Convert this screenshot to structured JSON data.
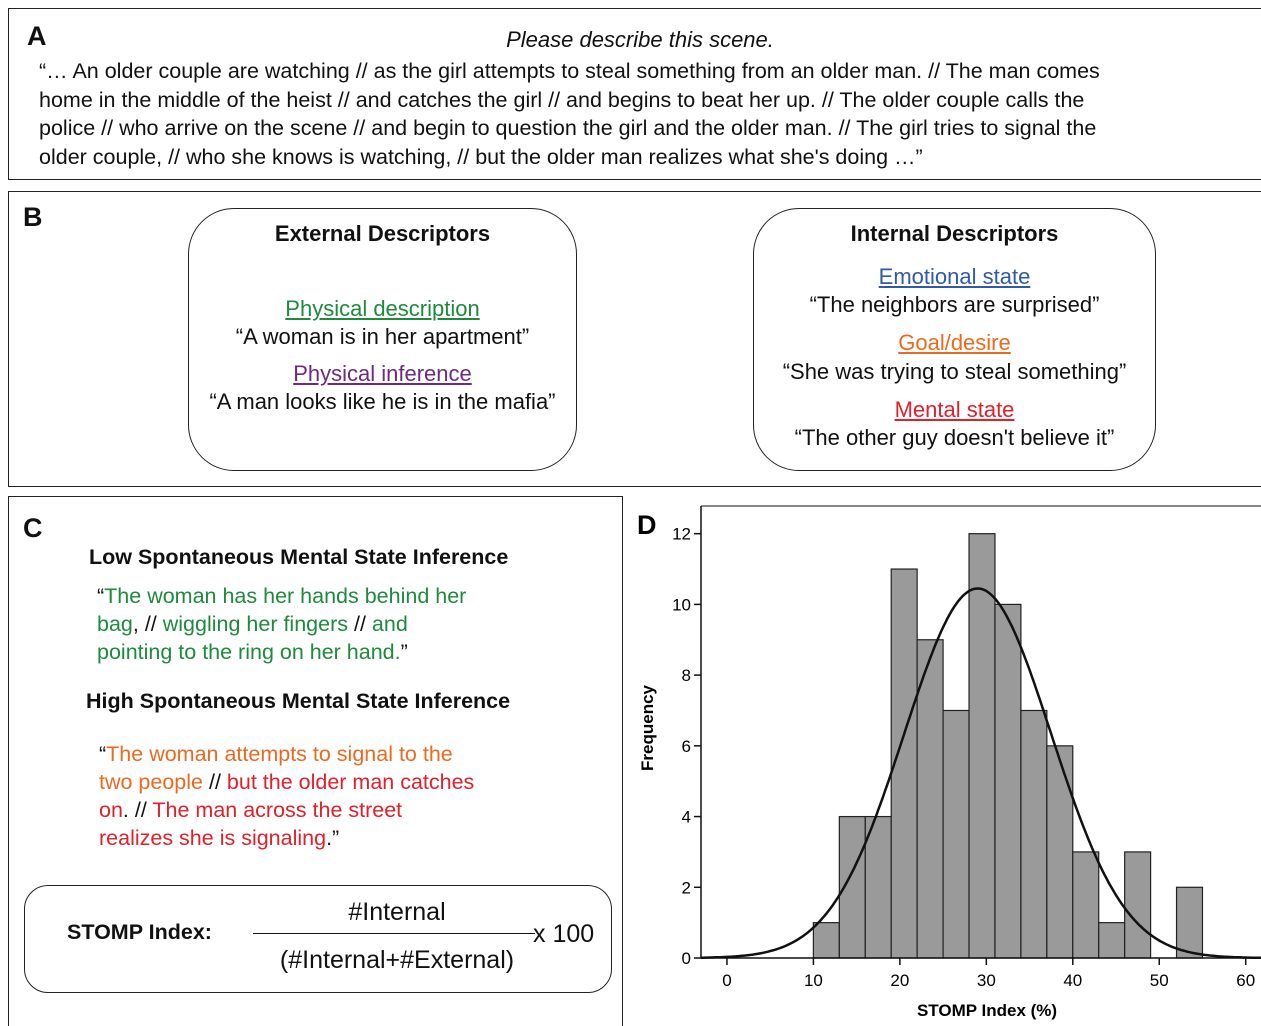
{
  "panel_a": {
    "label": "A",
    "prompt": "Please describe this scene.",
    "lines": [
      "“… An older couple are watching // as the girl attempts to steal something from an older man. // The man comes",
      "home in the middle of the heist // and catches the girl // and begins to beat her up. // The older couple calls the",
      "police // who arrive on the scene // and begin to question the girl and the older man. // The girl tries to signal the",
      "older couple, // who she knows is watching, // but the older man realizes what she's doing …”"
    ]
  },
  "panel_b": {
    "label": "B",
    "external": {
      "title": "External Descriptors",
      "items": [
        {
          "category": "Physical description",
          "quote": "“A woman is in her apartment”",
          "color": "#1e8a3c"
        },
        {
          "category": "Physical inference",
          "quote": "“A man looks like he is in the mafia”",
          "color": "#6d2a80"
        }
      ]
    },
    "internal": {
      "title": "Internal Descriptors",
      "items": [
        {
          "category": "Emotional state",
          "quote": "“The neighbors are surprised”",
          "color": "#2f5aa8"
        },
        {
          "category": "Goal/desire",
          "quote": "“She was trying to steal something”",
          "color": "#ec6a1f"
        },
        {
          "category": "Mental state",
          "quote": "“The other guy doesn't believe it”",
          "color": "#e0202a"
        }
      ]
    }
  },
  "panel_c": {
    "label": "C",
    "low_title": "Low Spontaneous Mental State Inference",
    "low": {
      "open": "“",
      "s1a": "The woman has her hands behind her",
      "s1b": "bag",
      "sep1": ", // ",
      "s2": "wiggling her fingers",
      "sep2": " // ",
      "s3a": "and",
      "s3b": "pointing to the ring on her hand.",
      "close": "”"
    },
    "high_title": "High Spontaneous Mental State Inference",
    "high": {
      "open": "“",
      "s1a": "The woman attempts to signal to the",
      "s1b": "two people",
      "sep1": " // ",
      "s2a": "but the older man catches",
      "s2b": "on",
      "sep2": ". // ",
      "s3a": "The man across the street",
      "s3b": "realizes she is signaling",
      "close": ".”"
    },
    "formula": {
      "label": "STOMP Index:",
      "numerator": "#Internal",
      "denominator": "(#Internal+#External)",
      "multiplier": "x 100"
    }
  },
  "panel_d": {
    "label": "D"
  },
  "chart_data": {
    "type": "bar",
    "subtype": "histogram",
    "xlabel": "STOMP Index (%)",
    "ylabel": "Frequency",
    "xlim": [
      -3,
      62
    ],
    "ylim": [
      0,
      12.5
    ],
    "xticks": [
      0,
      10,
      20,
      30,
      40,
      50,
      60
    ],
    "yticks": [
      0,
      2,
      4,
      6,
      8,
      10,
      12
    ],
    "bin_width": 3,
    "bin_edges": [
      10,
      13,
      16,
      19,
      22,
      25,
      28,
      31,
      34,
      37,
      40,
      43,
      46,
      49,
      52,
      55
    ],
    "bins": [
      {
        "start": 10,
        "end": 13,
        "count": 1
      },
      {
        "start": 13,
        "end": 16,
        "count": 4
      },
      {
        "start": 16,
        "end": 19,
        "count": 4
      },
      {
        "start": 19,
        "end": 22,
        "count": 11
      },
      {
        "start": 22,
        "end": 25,
        "count": 9
      },
      {
        "start": 25,
        "end": 28,
        "count": 7
      },
      {
        "start": 28,
        "end": 31,
        "count": 12
      },
      {
        "start": 31,
        "end": 34,
        "count": 10
      },
      {
        "start": 34,
        "end": 37,
        "count": 7
      },
      {
        "start": 37,
        "end": 40,
        "count": 6
      },
      {
        "start": 40,
        "end": 43,
        "count": 3
      },
      {
        "start": 43,
        "end": 46,
        "count": 1
      },
      {
        "start": 46,
        "end": 49,
        "count": 3
      },
      {
        "start": 49,
        "end": 52,
        "count": 0
      },
      {
        "start": 52,
        "end": 55,
        "count": 2
      }
    ],
    "normal_curve": {
      "mean": 29,
      "sd": 8.5,
      "peak": 10.45
    },
    "bar_color": "#9a9a9a",
    "curve_color": "#111111",
    "grid": false
  }
}
